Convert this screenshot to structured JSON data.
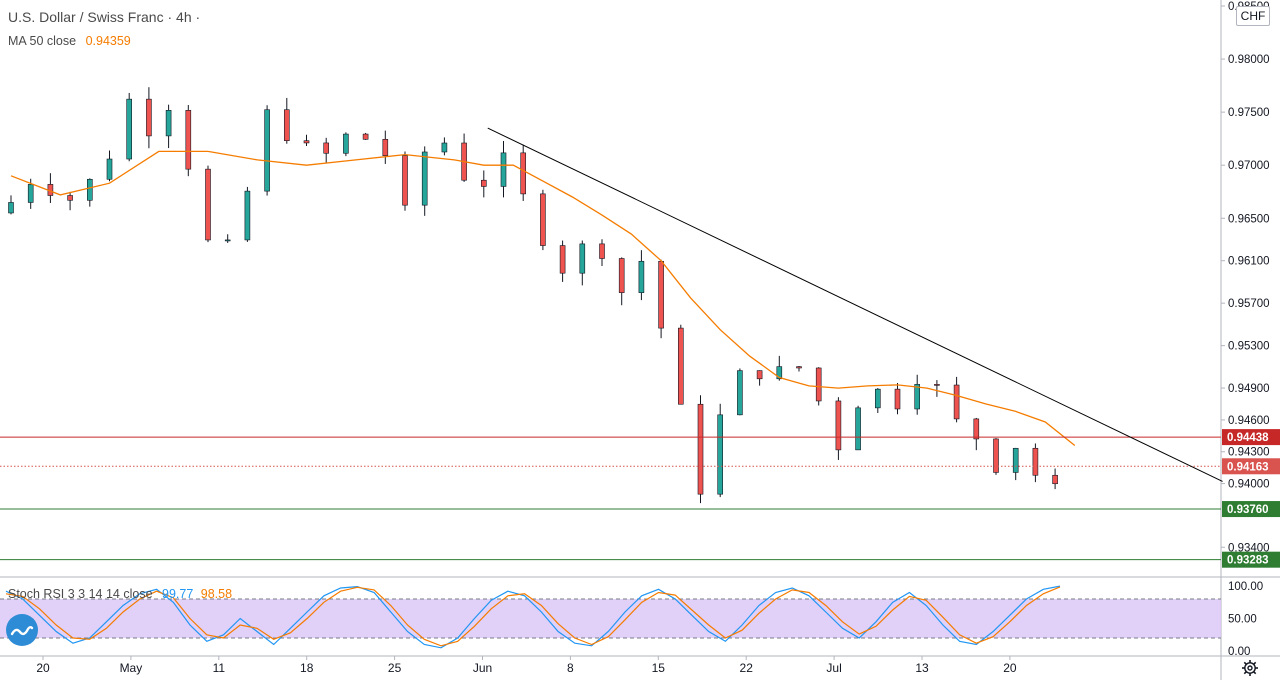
{
  "header": {
    "symbol": "U.S. Dollar / Swiss Franc",
    "separator": "·",
    "interval": "4h",
    "tail": "·"
  },
  "ma_legend": {
    "label": "MA 50 close",
    "value": "0.94359"
  },
  "stoch_legend": {
    "label": "Stoch RSI 3 3 14 14 close",
    "k": "99.77",
    "d": "98.58"
  },
  "currency_badge": "CHF",
  "colors": {
    "up": "#26a69a",
    "down": "#ef5350",
    "wick": "#131722",
    "ma": "#f57c00",
    "trend": "#000000",
    "resistance": "#c62828",
    "last": "#d9534f",
    "support": "#2e7d32",
    "stoch_k": "#2196f3",
    "stoch_d": "#f57c00",
    "stoch_band": "#dcc8f7"
  },
  "icons": {
    "logo": "tradingview-logo-icon",
    "settings": "gear-icon"
  },
  "chart_data": [
    {
      "type": "candlestick",
      "title": "U.S. Dollar / Swiss Franc · 4h",
      "ylim": [
        0.9328,
        0.985
      ],
      "x_ticks": [
        "20",
        "May",
        "11",
        "18",
        "25",
        "Jun",
        "8",
        "15",
        "22",
        "Jul",
        "13",
        "20"
      ],
      "y_ticks": [
        "0.98500",
        "0.98000",
        "0.97500",
        "0.97000",
        "0.96500",
        "0.96100",
        "0.95700",
        "0.95300",
        "0.94900",
        "0.94600",
        "0.94300",
        "0.94000",
        "0.93400"
      ],
      "price_path": [
        [
          0,
          0.9655
        ],
        [
          1.5,
          0.9685
        ],
        [
          3.5,
          0.9668
        ],
        [
          5.4,
          0.97
        ],
        [
          6.2,
          0.9772
        ],
        [
          7.4,
          0.973
        ],
        [
          8.4,
          0.976
        ],
        [
          9.2,
          0.973
        ],
        [
          10.0,
          0.965
        ],
        [
          11.0,
          0.9605
        ],
        [
          12.2,
          0.965
        ],
        [
          13.4,
          0.975
        ],
        [
          14.2,
          0.9742
        ],
        [
          15.0,
          0.9705
        ],
        [
          16.1,
          0.973
        ],
        [
          16.9,
          0.969
        ],
        [
          17.7,
          0.974
        ],
        [
          18.5,
          0.9725
        ],
        [
          19.5,
          0.971
        ],
        [
          20.4,
          0.965
        ],
        [
          21.2,
          0.9705
        ],
        [
          22.0,
          0.9725
        ],
        [
          23.0,
          0.9718
        ],
        [
          24.0,
          0.966
        ],
        [
          25.1,
          0.971
        ],
        [
          26.1,
          0.97
        ],
        [
          26.9,
          0.964
        ],
        [
          27.8,
          0.9625
        ],
        [
          28.7,
          0.9595
        ],
        [
          29.7,
          0.963
        ],
        [
          30.5,
          0.9618
        ],
        [
          31.2,
          0.9548
        ],
        [
          32.0,
          0.9635
        ],
        [
          32.8,
          0.9595
        ],
        [
          33.6,
          0.954
        ],
        [
          34.2,
          0.9488
        ],
        [
          35.0,
          0.944
        ],
        [
          35.6,
          0.9385
        ],
        [
          36.3,
          0.944
        ],
        [
          37.0,
          0.952
        ],
        [
          38.0,
          0.9485
        ],
        [
          38.8,
          0.9515
        ],
        [
          40.0,
          0.95
        ],
        [
          41.0,
          0.9518
        ],
        [
          41.6,
          0.947
        ],
        [
          42.5,
          0.9435
        ],
        [
          43.3,
          0.947
        ],
        [
          44.0,
          0.949
        ],
        [
          45.0,
          0.9485
        ],
        [
          46.0,
          0.9465
        ],
        [
          46.8,
          0.952
        ],
        [
          47.5,
          0.949
        ],
        [
          48.1,
          0.9465
        ],
        [
          49.0,
          0.945
        ],
        [
          49.8,
          0.944
        ],
        [
          50.8,
          0.9405
        ],
        [
          51.6,
          0.944
        ],
        [
          52.3,
          0.942
        ],
        [
          53.0,
          0.938
        ],
        [
          53.5,
          0.9395
        ],
        [
          54.0,
          0.942
        ]
      ],
      "moving_average": {
        "name": "MA 50 close",
        "points": [
          [
            0,
            0.969
          ],
          [
            2.5,
            0.9672
          ],
          [
            5.0,
            0.9683
          ],
          [
            7.5,
            0.9713
          ],
          [
            10.0,
            0.9713
          ],
          [
            12.5,
            0.9705
          ],
          [
            15.0,
            0.97
          ],
          [
            17.5,
            0.9705
          ],
          [
            20.0,
            0.971
          ],
          [
            22.5,
            0.9705
          ],
          [
            24.0,
            0.97
          ],
          [
            25.5,
            0.97
          ],
          [
            27.0,
            0.9685
          ],
          [
            28.5,
            0.967
          ],
          [
            30.0,
            0.9653
          ],
          [
            31.5,
            0.9635
          ],
          [
            33.0,
            0.961
          ],
          [
            34.5,
            0.9575
          ],
          [
            36.0,
            0.9545
          ],
          [
            37.5,
            0.952
          ],
          [
            39.0,
            0.95
          ],
          [
            40.5,
            0.9492
          ],
          [
            42.0,
            0.949
          ],
          [
            43.5,
            0.9492
          ],
          [
            45.0,
            0.9493
          ],
          [
            46.5,
            0.949
          ],
          [
            48.0,
            0.9483
          ],
          [
            49.5,
            0.9475
          ],
          [
            51.0,
            0.9468
          ],
          [
            52.5,
            0.9458
          ],
          [
            54.0,
            0.94359
          ]
        ]
      },
      "trendline": {
        "from": [
          24.2,
          0.9735
        ],
        "to": [
          61.5,
          0.9402
        ]
      },
      "levels": [
        {
          "label": "0.94438",
          "value": 0.94438,
          "style": "solid",
          "kind": "resistance"
        },
        {
          "label": "0.94163",
          "value": 0.94163,
          "style": "dotted",
          "kind": "last"
        },
        {
          "label": "0.93760",
          "value": 0.9376,
          "style": "solid",
          "kind": "support"
        },
        {
          "label": "0.93283",
          "value": 0.93283,
          "style": "solid",
          "kind": "support"
        }
      ]
    },
    {
      "type": "line",
      "title": "Stoch RSI 3 3 14 14 close",
      "ylim": [
        0,
        100
      ],
      "y_ticks": [
        "100.00",
        "50.00",
        "0.00"
      ],
      "band": [
        20,
        80
      ],
      "series": [
        {
          "name": "K",
          "values": [
            92,
            80,
            55,
            30,
            12,
            20,
            45,
            70,
            88,
            95,
            75,
            40,
            15,
            25,
            50,
            30,
            10,
            35,
            60,
            85,
            97,
            99,
            90,
            60,
            30,
            10,
            5,
            20,
            50,
            78,
            92,
            85,
            60,
            30,
            12,
            8,
            30,
            60,
            85,
            95,
            80,
            55,
            30,
            15,
            40,
            70,
            90,
            97,
            85,
            60,
            35,
            20,
            45,
            75,
            90,
            70,
            40,
            15,
            10,
            30,
            55,
            80,
            95,
            99.77
          ]
        },
        {
          "name": "D",
          "values": [
            88,
            84,
            65,
            40,
            20,
            18,
            35,
            60,
            80,
            92,
            82,
            50,
            25,
            20,
            40,
            35,
            18,
            28,
            50,
            75,
            92,
            98,
            94,
            70,
            40,
            18,
            8,
            15,
            38,
            65,
            85,
            88,
            70,
            42,
            20,
            10,
            22,
            48,
            75,
            90,
            86,
            63,
            40,
            20,
            32,
            58,
            80,
            94,
            90,
            70,
            45,
            26,
            38,
            63,
            84,
            78,
            52,
            25,
            12,
            22,
            45,
            70,
            88,
            98.58
          ]
        }
      ]
    }
  ]
}
